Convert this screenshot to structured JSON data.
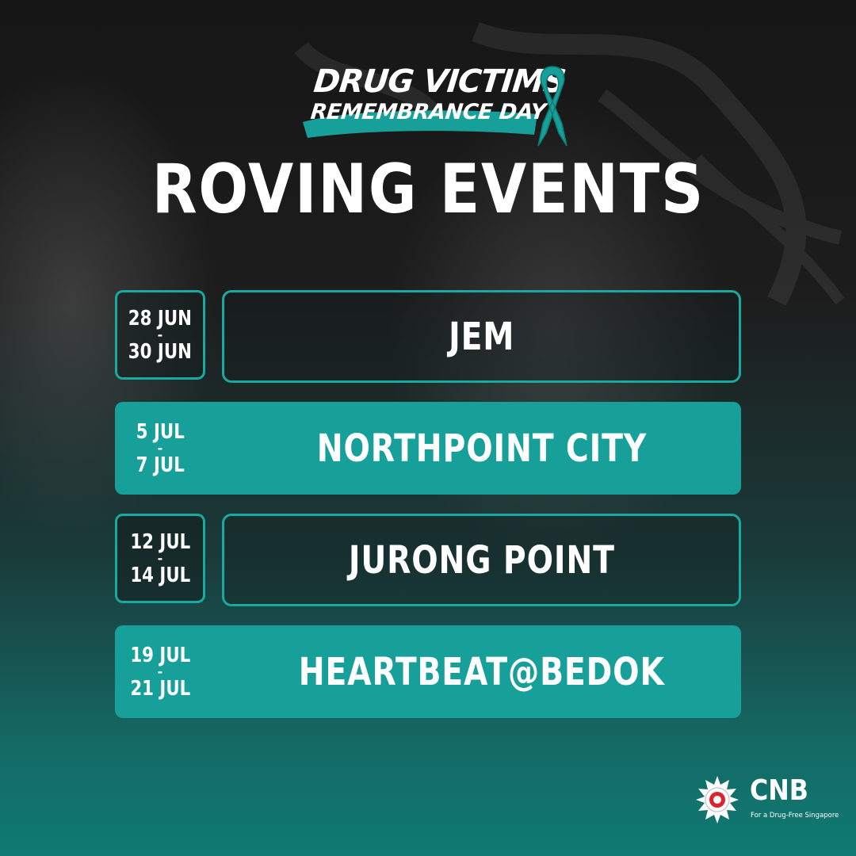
{
  "logo": {
    "line1": "DRUG VICTIMS",
    "line2": "REMEMBRANCE DAY",
    "ribbon_icon": "awareness-ribbon-icon"
  },
  "title": "ROVING EVENTS",
  "events": [
    {
      "date_start": "28 JUN",
      "date_sep": "-",
      "date_end": "30 JUN",
      "venue": "JEM",
      "style": "outline"
    },
    {
      "date_start": "5 JUL",
      "date_sep": "-",
      "date_end": "7 JUL",
      "venue": "NORTHPOINT CITY",
      "style": "filled"
    },
    {
      "date_start": "12 JUL",
      "date_sep": "-",
      "date_end": "14 JUL",
      "venue": "JURONG POINT",
      "style": "outline"
    },
    {
      "date_start": "19 JUL",
      "date_sep": "-",
      "date_end": "21 JUL",
      "venue": "HEARTBEAT@BEDOK",
      "style": "filled"
    }
  ],
  "footer": {
    "org": "CNB",
    "tagline": "For a Drug-Free Singapore",
    "seal_icon": "cnb-seal-icon"
  },
  "colors": {
    "accent": "#16a099",
    "outline": "#18aaa0",
    "background_dark": "#1a1a1a",
    "background_teal": "#0f7a73",
    "text": "#ffffff"
  }
}
